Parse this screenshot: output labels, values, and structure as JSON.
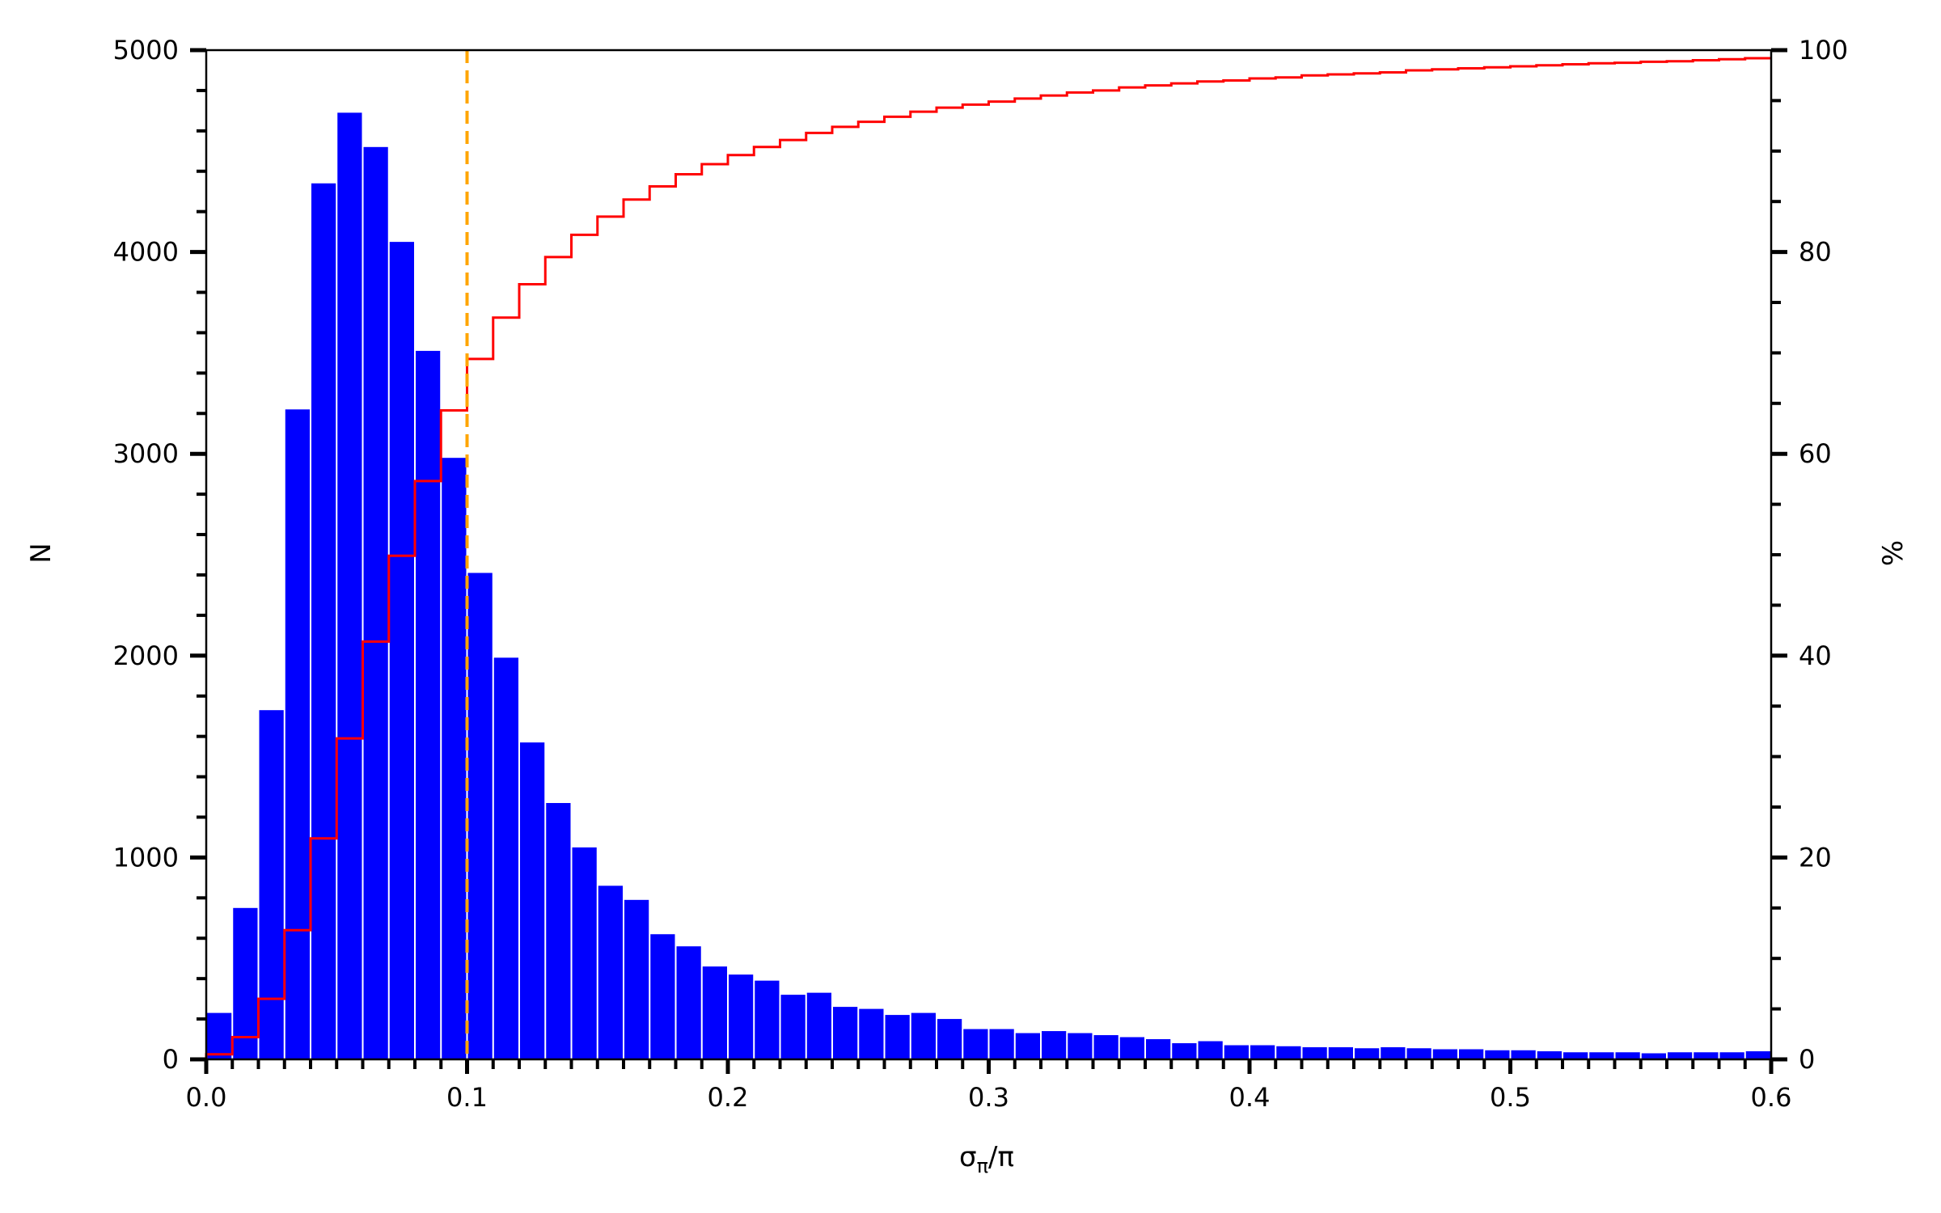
{
  "chart_data": {
    "type": "bar",
    "title": "",
    "xlabel": "σπ/π",
    "xlabel_main": "σ",
    "xlabel_sub": "π",
    "xlabel_tail": "/π",
    "ylabel": "N",
    "y2label": "%",
    "xlim": [
      0.0,
      0.6
    ],
    "ylim": [
      0,
      5000
    ],
    "y2lim": [
      0,
      100
    ],
    "bin_width": 0.01,
    "x_ticks": [
      "0.0",
      "0.1",
      "0.2",
      "0.3",
      "0.4",
      "0.5",
      "0.6"
    ],
    "y_ticks": [
      "0",
      "1000",
      "2000",
      "3000",
      "4000",
      "5000"
    ],
    "y2_ticks": [
      "0",
      "20",
      "40",
      "60",
      "80",
      "100"
    ],
    "grid": false,
    "threshold_x": 0.1,
    "series": [
      {
        "kind": "histogram",
        "axis": "left",
        "color": "#0000ff",
        "values": [
          230,
          750,
          1730,
          3220,
          4340,
          4690,
          4520,
          4050,
          3510,
          2980,
          2410,
          1990,
          1570,
          1270,
          1050,
          860,
          790,
          620,
          560,
          460,
          420,
          390,
          320,
          330,
          260,
          250,
          220,
          230,
          200,
          150,
          150,
          130,
          140,
          130,
          120,
          110,
          100,
          80,
          90,
          70,
          70,
          65,
          60,
          60,
          55,
          60,
          55,
          50,
          50,
          45,
          45,
          40,
          35,
          35,
          35,
          30,
          35,
          35,
          35,
          40
        ]
      },
      {
        "kind": "cumulative-step",
        "axis": "right",
        "color": "#ff0000",
        "values": [
          0.5,
          2.2,
          6.0,
          12.8,
          21.9,
          31.8,
          41.4,
          49.9,
          57.3,
          64.3,
          69.4,
          73.5,
          76.8,
          79.5,
          81.7,
          83.5,
          85.2,
          86.5,
          87.7,
          88.7,
          89.6,
          90.4,
          91.1,
          91.8,
          92.4,
          92.9,
          93.4,
          93.9,
          94.3,
          94.6,
          94.9,
          95.2,
          95.5,
          95.8,
          96.0,
          96.3,
          96.5,
          96.7,
          96.9,
          97.0,
          97.2,
          97.3,
          97.5,
          97.6,
          97.7,
          97.8,
          98.0,
          98.1,
          98.2,
          98.3,
          98.4,
          98.5,
          98.6,
          98.7,
          98.75,
          98.85,
          98.9,
          99.0,
          99.1,
          99.2
        ]
      }
    ],
    "colors": {
      "bars": "#0000ff",
      "cumulative": "#ff0000",
      "threshold": "#ffa500",
      "axes": "#000000"
    }
  }
}
